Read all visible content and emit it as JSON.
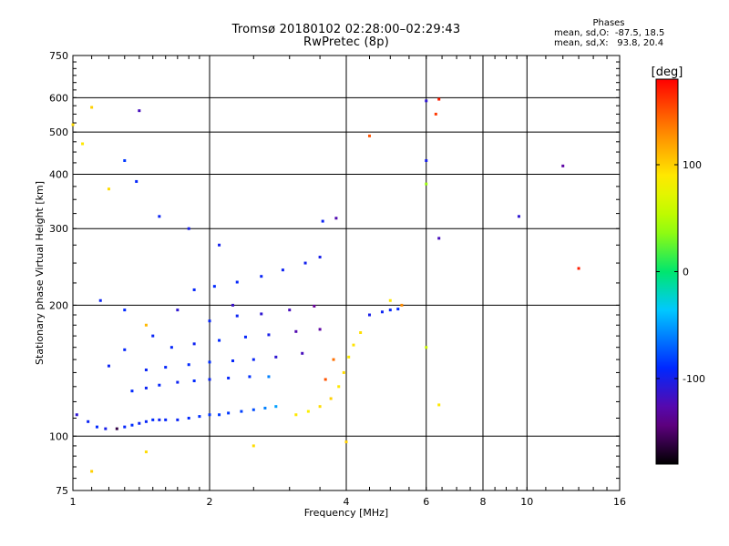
{
  "figure": {
    "title_line1": "Tromsø 20180102 02:28:00–02:29:43",
    "title_line2": "RwPretec (8p)",
    "phases_title": "Phases",
    "phases_line1": "mean, sd,O:  -87.5, 18.5",
    "phases_line2": "mean, sd,X:   93.8, 20.4"
  },
  "chart_data": {
    "type": "scatter",
    "xlabel": "Frequency [MHz]",
    "ylabel": "Stationary phase Virtual Height [km]",
    "xscale": "log",
    "yscale": "log",
    "xlim": [
      1,
      16
    ],
    "ylim": [
      75,
      750
    ],
    "x_ticks": [
      1,
      2,
      4,
      6,
      8,
      10,
      16
    ],
    "y_ticks": [
      75,
      100,
      200,
      300,
      400,
      500,
      600,
      750
    ],
    "grid": true,
    "colorbar": {
      "label": "[deg]",
      "range": [
        -180,
        180
      ],
      "ticks": [
        100,
        0,
        -100
      ],
      "colormap": "rainbow (black-purple-blue-cyan-green-yellow-orange-red)"
    },
    "points": [
      [
        1.08,
        108,
        -95
      ],
      [
        1.13,
        105,
        -90
      ],
      [
        1.18,
        104,
        -100
      ],
      [
        1.25,
        104,
        -160
      ],
      [
        1.3,
        105,
        -92
      ],
      [
        1.35,
        106,
        -88
      ],
      [
        1.4,
        107,
        -95
      ],
      [
        1.45,
        108,
        -93
      ],
      [
        1.5,
        109,
        -89
      ],
      [
        1.55,
        109,
        -96
      ],
      [
        1.6,
        109,
        -92
      ],
      [
        1.7,
        109,
        -94
      ],
      [
        1.8,
        110,
        -90
      ],
      [
        1.9,
        111,
        -88
      ],
      [
        2.0,
        112,
        -86
      ],
      [
        2.1,
        112,
        -84
      ],
      [
        2.2,
        113,
        -85
      ],
      [
        2.35,
        114,
        -82
      ],
      [
        2.5,
        115,
        -78
      ],
      [
        2.65,
        116,
        -60
      ],
      [
        2.8,
        117,
        -50
      ],
      [
        1.35,
        127,
        -90
      ],
      [
        1.45,
        129,
        -95
      ],
      [
        1.55,
        131,
        -92
      ],
      [
        1.7,
        133,
        -96
      ],
      [
        1.85,
        134,
        -90
      ],
      [
        2.0,
        135,
        -94
      ],
      [
        2.2,
        136,
        -92
      ],
      [
        2.45,
        137,
        -88
      ],
      [
        2.7,
        137,
        -60
      ],
      [
        1.45,
        142,
        -94
      ],
      [
        1.6,
        144,
        -92
      ],
      [
        1.8,
        146,
        -90
      ],
      [
        2.0,
        148,
        -88
      ],
      [
        2.25,
        149,
        -92
      ],
      [
        2.5,
        150,
        -94
      ],
      [
        2.8,
        152,
        -110
      ],
      [
        3.2,
        155,
        -120
      ],
      [
        1.65,
        160,
        -92
      ],
      [
        1.85,
        163,
        -96
      ],
      [
        2.1,
        166,
        -90
      ],
      [
        2.4,
        169,
        -92
      ],
      [
        2.7,
        171,
        -100
      ],
      [
        3.1,
        174,
        -125
      ],
      [
        3.5,
        176,
        -130
      ],
      [
        2.0,
        184,
        -92
      ],
      [
        2.3,
        189,
        -95
      ],
      [
        2.6,
        191,
        -110
      ],
      [
        3.0,
        195,
        -120
      ],
      [
        3.4,
        199,
        -135
      ],
      [
        1.85,
        217,
        -92
      ],
      [
        2.05,
        221,
        -90
      ],
      [
        2.3,
        226,
        -92
      ],
      [
        2.6,
        233,
        -94
      ],
      [
        2.9,
        241,
        -96
      ],
      [
        3.25,
        250,
        -98
      ],
      [
        3.5,
        258,
        -100
      ],
      [
        3.1,
        112,
        90
      ],
      [
        3.3,
        114,
        85
      ],
      [
        3.5,
        117,
        95
      ],
      [
        3.7,
        122,
        100
      ],
      [
        3.85,
        130,
        90
      ],
      [
        3.95,
        140,
        95
      ],
      [
        4.05,
        152,
        88
      ],
      [
        4.15,
        162,
        92
      ],
      [
        4.3,
        173,
        94
      ],
      [
        3.6,
        135,
        150
      ],
      [
        3.75,
        150,
        140
      ],
      [
        4.5,
        190,
        -100
      ],
      [
        4.8,
        193,
        -95
      ],
      [
        5.0,
        195,
        -92
      ],
      [
        5.2,
        196,
        -90
      ],
      [
        5.3,
        200,
        130
      ],
      [
        1.02,
        112,
        -110
      ],
      [
        1.05,
        470,
        90
      ],
      [
        1.1,
        570,
        100
      ],
      [
        1.0,
        520,
        95
      ],
      [
        1.2,
        370,
        95
      ],
      [
        1.4,
        560,
        -120
      ],
      [
        1.55,
        320,
        -95
      ],
      [
        1.38,
        385,
        -92
      ],
      [
        1.3,
        430,
        -85
      ],
      [
        3.8,
        317,
        -125
      ],
      [
        3.55,
        312,
        -95
      ],
      [
        4.5,
        490,
        150
      ],
      [
        6.0,
        590,
        -110
      ],
      [
        6.0,
        430,
        -100
      ],
      [
        6.0,
        380,
        40
      ],
      [
        6.0,
        160,
        60
      ],
      [
        6.4,
        595,
        170
      ],
      [
        6.3,
        550,
        160
      ],
      [
        6.4,
        285,
        -120
      ],
      [
        9.6,
        320,
        -110
      ],
      [
        12.0,
        418,
        -130
      ],
      [
        13.0,
        243,
        170
      ],
      [
        1.1,
        83,
        100
      ],
      [
        1.45,
        92,
        95
      ],
      [
        2.5,
        95,
        95
      ],
      [
        4.0,
        97,
        100
      ],
      [
        6.4,
        118,
        90
      ],
      [
        1.15,
        205,
        -95
      ],
      [
        1.3,
        195,
        -90
      ],
      [
        1.45,
        180,
        110
      ],
      [
        1.3,
        158,
        -92
      ],
      [
        1.5,
        170,
        -94
      ],
      [
        1.2,
        145,
        -95
      ],
      [
        1.7,
        195,
        -110
      ],
      [
        2.25,
        200,
        -115
      ],
      [
        1.8,
        300,
        -100
      ],
      [
        2.1,
        275,
        -98
      ],
      [
        5.0,
        205,
        90
      ]
    ]
  }
}
